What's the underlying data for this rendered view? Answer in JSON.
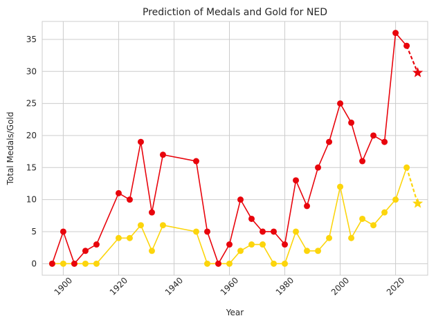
{
  "chart_data": {
    "type": "line",
    "title": "Prediction of Medals and Gold for NED",
    "xlabel": "Year",
    "ylabel": "Total Medals/Gold",
    "xlim": [
      1892.4,
      2031.6
    ],
    "ylim": [
      -1.8,
      37.8
    ],
    "xticks": [
      1900,
      1920,
      1940,
      1960,
      1980,
      2000,
      2020
    ],
    "yticks": [
      0,
      5,
      10,
      15,
      20,
      25,
      30,
      35
    ],
    "grid": true,
    "series": [
      {
        "name": "Total Medals",
        "color": "#e8040c",
        "x": [
          1896,
          1900,
          1904,
          1908,
          1912,
          1920,
          1924,
          1928,
          1932,
          1936,
          1948,
          1952,
          1956,
          1960,
          1964,
          1968,
          1972,
          1976,
          1980,
          1984,
          1988,
          1992,
          1996,
          2000,
          2004,
          2008,
          2012,
          2016,
          2020,
          2024
        ],
        "values": [
          0,
          5,
          0,
          2,
          3,
          11,
          10,
          19,
          8,
          17,
          16,
          5,
          0,
          3,
          10,
          7,
          5,
          5,
          3,
          13,
          9,
          15,
          19,
          25,
          22,
          16,
          20,
          19,
          36,
          34
        ],
        "prediction": {
          "x": 2028,
          "value": 29.8
        }
      },
      {
        "name": "Gold",
        "color": "#fcd50c",
        "x": [
          1896,
          1900,
          1904,
          1908,
          1912,
          1920,
          1924,
          1928,
          1932,
          1936,
          1948,
          1952,
          1956,
          1960,
          1964,
          1968,
          1972,
          1976,
          1980,
          1984,
          1988,
          1992,
          1996,
          2000,
          2004,
          2008,
          2012,
          2016,
          2020,
          2024
        ],
        "values": [
          0,
          0,
          0,
          0,
          0,
          4,
          4,
          6,
          2,
          6,
          5,
          0,
          0,
          0,
          2,
          3,
          3,
          0,
          0,
          5,
          2,
          2,
          4,
          12,
          4,
          7,
          6,
          8,
          10,
          15
        ],
        "prediction": {
          "x": 2028,
          "value": 9.4
        }
      }
    ]
  }
}
